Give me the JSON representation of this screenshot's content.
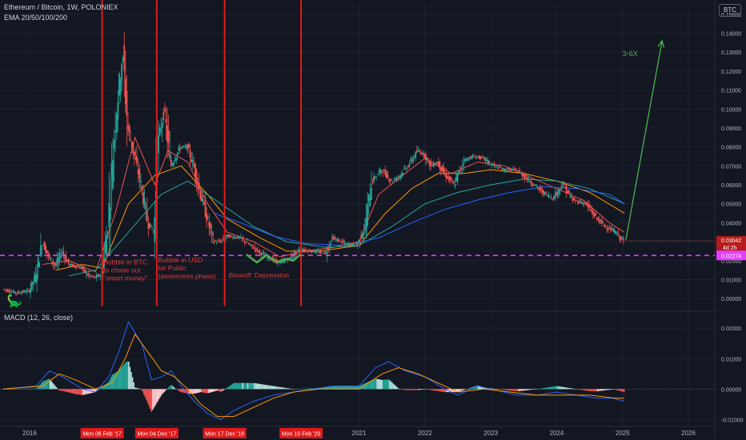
{
  "header": {
    "title": "Ethereum / Bitcoin, 1W, POLONIEX",
    "indicator": "EMA 20/50/100/200",
    "macd_label": "MACD (12, 26, close)",
    "currency_button": "BTC"
  },
  "colors": {
    "background": "#131722",
    "grid": "#1f2330",
    "up_candle": "#26a69a",
    "down_candle": "#ef5350",
    "vertical_lines": "#e0191b",
    "support_line": "#e040fb",
    "arrow": "#4caf50",
    "ema20": "#ef5350",
    "ema50": "#ff9800",
    "ema100": "#26a69a",
    "ema200": "#2962ff",
    "macd_line": "#2962ff",
    "signal_line": "#ff9800"
  },
  "chart_data": {
    "type": "candlestick",
    "price_axis": {
      "range": [
        -0.005,
        0.155
      ],
      "ticks": [
        0,
        0.01,
        0.02,
        0.03,
        0.04,
        0.05,
        0.06,
        0.07,
        0.08,
        0.09,
        0.1,
        0.11,
        0.12,
        0.13,
        0.14,
        0.15
      ],
      "tick_labels": [
        "0.00000",
        "0.01000",
        "0.02000",
        "0.03000",
        "0.04000",
        "0.05000",
        "0.06000",
        "0.07000",
        "0.08000",
        "0.09000",
        "0.10000",
        "0.11000",
        "0.12000",
        "0.13000",
        "0.14000",
        "0.15000"
      ]
    },
    "macd_axis": {
      "range": [
        -0.012,
        0.024
      ],
      "ticks": [
        -0.01,
        0,
        0.01,
        0.02
      ],
      "tick_labels": [
        "-0.01000",
        "0.00000",
        "0.01000",
        "0.02000"
      ]
    },
    "time_axis": {
      "range": [
        2015.55,
        2026.4
      ],
      "ticks": [
        2016,
        2021,
        2022,
        2023,
        2024,
        2025,
        2026
      ],
      "tick_labels": [
        "2016",
        "2021",
        "2022",
        "2023",
        "2024",
        "2025",
        "2026"
      ],
      "highlighted_dates": [
        {
          "x": 2017.1,
          "label": "Mon 06 Feb '17"
        },
        {
          "x": 2017.93,
          "label": "Mon 04 Dec '17"
        },
        {
          "x": 2018.96,
          "label": "Mon 17 Dec '18"
        },
        {
          "x": 2020.12,
          "label": "Mon 10 Feb '20"
        }
      ]
    },
    "price_path": [
      [
        2015.6,
        0.005
      ],
      [
        2015.8,
        0.003
      ],
      [
        2016.0,
        0.004
      ],
      [
        2016.1,
        0.012
      ],
      [
        2016.2,
        0.03
      ],
      [
        2016.3,
        0.022
      ],
      [
        2016.4,
        0.017
      ],
      [
        2016.5,
        0.025
      ],
      [
        2016.6,
        0.018
      ],
      [
        2016.8,
        0.016
      ],
      [
        2016.9,
        0.012
      ],
      [
        2017.0,
        0.011
      ],
      [
        2017.1,
        0.013
      ],
      [
        2017.2,
        0.04
      ],
      [
        2017.3,
        0.09
      ],
      [
        2017.42,
        0.13
      ],
      [
        2017.5,
        0.09
      ],
      [
        2017.6,
        0.075
      ],
      [
        2017.7,
        0.06
      ],
      [
        2017.8,
        0.04
      ],
      [
        2017.9,
        0.035
      ],
      [
        2017.95,
        0.08
      ],
      [
        2018.05,
        0.1
      ],
      [
        2018.15,
        0.07
      ],
      [
        2018.3,
        0.08
      ],
      [
        2018.4,
        0.08
      ],
      [
        2018.5,
        0.07
      ],
      [
        2018.6,
        0.055
      ],
      [
        2018.8,
        0.03
      ],
      [
        2018.9,
        0.03
      ],
      [
        2019.0,
        0.033
      ],
      [
        2019.2,
        0.032
      ],
      [
        2019.4,
        0.027
      ],
      [
        2019.6,
        0.022
      ],
      [
        2019.8,
        0.019
      ],
      [
        2019.95,
        0.021
      ],
      [
        2020.1,
        0.026
      ],
      [
        2020.3,
        0.025
      ],
      [
        2020.5,
        0.024
      ],
      [
        2020.6,
        0.032
      ],
      [
        2020.8,
        0.029
      ],
      [
        2020.95,
        0.028
      ],
      [
        2021.0,
        0.03
      ],
      [
        2021.1,
        0.038
      ],
      [
        2021.2,
        0.062
      ],
      [
        2021.35,
        0.068
      ],
      [
        2021.5,
        0.062
      ],
      [
        2021.6,
        0.064
      ],
      [
        2021.75,
        0.07
      ],
      [
        2021.9,
        0.078
      ],
      [
        2022.0,
        0.076
      ],
      [
        2022.1,
        0.07
      ],
      [
        2022.2,
        0.072
      ],
      [
        2022.3,
        0.066
      ],
      [
        2022.45,
        0.06
      ],
      [
        2022.6,
        0.073
      ],
      [
        2022.75,
        0.075
      ],
      [
        2022.9,
        0.074
      ],
      [
        2023.0,
        0.071
      ],
      [
        2023.2,
        0.068
      ],
      [
        2023.4,
        0.068
      ],
      [
        2023.6,
        0.062
      ],
      [
        2023.8,
        0.056
      ],
      [
        2023.95,
        0.053
      ],
      [
        2024.1,
        0.06
      ],
      [
        2024.25,
        0.052
      ],
      [
        2024.45,
        0.05
      ],
      [
        2024.6,
        0.043
      ],
      [
        2024.75,
        0.038
      ],
      [
        2024.9,
        0.035
      ],
      [
        2025.03,
        0.03
      ]
    ],
    "ema_series": [
      {
        "key": "ema20",
        "values": [
          [
            2016.2,
            0.018
          ],
          [
            2016.6,
            0.02
          ],
          [
            2017.0,
            0.014
          ],
          [
            2017.3,
            0.045
          ],
          [
            2017.6,
            0.085
          ],
          [
            2017.9,
            0.06
          ],
          [
            2018.1,
            0.078
          ],
          [
            2018.4,
            0.072
          ],
          [
            2018.7,
            0.05
          ],
          [
            2019.0,
            0.035
          ],
          [
            2019.4,
            0.03
          ],
          [
            2019.8,
            0.022
          ],
          [
            2020.2,
            0.025
          ],
          [
            2020.6,
            0.027
          ],
          [
            2021.0,
            0.03
          ],
          [
            2021.3,
            0.055
          ],
          [
            2021.7,
            0.066
          ],
          [
            2022.0,
            0.074
          ],
          [
            2022.4,
            0.066
          ],
          [
            2022.8,
            0.072
          ],
          [
            2023.2,
            0.07
          ],
          [
            2023.6,
            0.064
          ],
          [
            2024.0,
            0.058
          ],
          [
            2024.4,
            0.052
          ],
          [
            2024.8,
            0.04
          ],
          [
            2025.03,
            0.035
          ]
        ]
      },
      {
        "key": "ema50",
        "values": [
          [
            2016.4,
            0.015
          ],
          [
            2016.8,
            0.018
          ],
          [
            2017.1,
            0.016
          ],
          [
            2017.5,
            0.05
          ],
          [
            2017.9,
            0.065
          ],
          [
            2018.3,
            0.07
          ],
          [
            2018.7,
            0.055
          ],
          [
            2019.0,
            0.042
          ],
          [
            2019.5,
            0.032
          ],
          [
            2019.9,
            0.025
          ],
          [
            2020.4,
            0.025
          ],
          [
            2021.0,
            0.028
          ],
          [
            2021.4,
            0.045
          ],
          [
            2021.8,
            0.058
          ],
          [
            2022.2,
            0.066
          ],
          [
            2022.6,
            0.066
          ],
          [
            2023.0,
            0.068
          ],
          [
            2023.5,
            0.066
          ],
          [
            2024.0,
            0.062
          ],
          [
            2024.5,
            0.056
          ],
          [
            2025.03,
            0.045
          ]
        ]
      },
      {
        "key": "ema100",
        "values": [
          [
            2016.6,
            0.012
          ],
          [
            2017.0,
            0.015
          ],
          [
            2017.5,
            0.035
          ],
          [
            2018.0,
            0.055
          ],
          [
            2018.4,
            0.062
          ],
          [
            2018.9,
            0.05
          ],
          [
            2019.4,
            0.038
          ],
          [
            2019.9,
            0.03
          ],
          [
            2020.5,
            0.027
          ],
          [
            2021.0,
            0.028
          ],
          [
            2021.5,
            0.038
          ],
          [
            2022.0,
            0.05
          ],
          [
            2022.5,
            0.056
          ],
          [
            2023.0,
            0.06
          ],
          [
            2023.5,
            0.063
          ],
          [
            2024.0,
            0.062
          ],
          [
            2024.5,
            0.058
          ],
          [
            2025.03,
            0.05
          ]
        ]
      },
      {
        "key": "ema200",
        "values": [
          [
            2018.8,
            0.045
          ],
          [
            2019.2,
            0.04
          ],
          [
            2019.7,
            0.033
          ],
          [
            2020.2,
            0.029
          ],
          [
            2020.8,
            0.028
          ],
          [
            2021.3,
            0.032
          ],
          [
            2021.8,
            0.04
          ],
          [
            2022.3,
            0.047
          ],
          [
            2022.8,
            0.052
          ],
          [
            2023.3,
            0.056
          ],
          [
            2023.8,
            0.059
          ],
          [
            2024.3,
            0.058
          ],
          [
            2024.8,
            0.055
          ],
          [
            2025.03,
            0.05
          ]
        ]
      }
    ],
    "green_curve": [
      [
        2019.3,
        0.023
      ],
      [
        2019.45,
        0.019
      ],
      [
        2019.6,
        0.023
      ],
      [
        2019.75,
        0.019
      ],
      [
        2019.9,
        0.021
      ],
      [
        2020.0,
        0.02
      ],
      [
        2020.1,
        0.023
      ]
    ],
    "macd_path": [
      [
        2015.6,
        0.0
      ],
      [
        2016.1,
        0.001
      ],
      [
        2016.3,
        0.006
      ],
      [
        2016.5,
        0.004
      ],
      [
        2016.8,
        0.0
      ],
      [
        2017.0,
        -0.001
      ],
      [
        2017.2,
        0.004
      ],
      [
        2017.35,
        0.012
      ],
      [
        2017.5,
        0.022
      ],
      [
        2017.7,
        0.015
      ],
      [
        2017.85,
        0.003
      ],
      [
        2018.0,
        0.004
      ],
      [
        2018.15,
        0.006
      ],
      [
        2018.3,
        0.001
      ],
      [
        2018.5,
        -0.004
      ],
      [
        2018.7,
        -0.008
      ],
      [
        2018.9,
        -0.01
      ],
      [
        2019.1,
        -0.007
      ],
      [
        2019.4,
        -0.004
      ],
      [
        2019.7,
        -0.002
      ],
      [
        2020.0,
        -0.001
      ],
      [
        2020.3,
        0.0
      ],
      [
        2020.6,
        0.001
      ],
      [
        2021.0,
        0.001
      ],
      [
        2021.25,
        0.007
      ],
      [
        2021.45,
        0.009
      ],
      [
        2021.7,
        0.006
      ],
      [
        2022.0,
        0.004
      ],
      [
        2022.3,
        0.0
      ],
      [
        2022.5,
        -0.002
      ],
      [
        2022.8,
        0.001
      ],
      [
        2023.0,
        0.0
      ],
      [
        2023.4,
        -0.002
      ],
      [
        2023.7,
        -0.002
      ],
      [
        2024.0,
        -0.001
      ],
      [
        2024.3,
        -0.002
      ],
      [
        2024.6,
        -0.003
      ],
      [
        2024.85,
        -0.003
      ],
      [
        2025.03,
        -0.004
      ]
    ],
    "signal_path": [
      [
        2015.6,
        0.0
      ],
      [
        2016.2,
        0.001
      ],
      [
        2016.45,
        0.005
      ],
      [
        2016.7,
        0.003
      ],
      [
        2017.0,
        0.0
      ],
      [
        2017.25,
        0.002
      ],
      [
        2017.45,
        0.01
      ],
      [
        2017.6,
        0.018
      ],
      [
        2017.8,
        0.012
      ],
      [
        2018.0,
        0.006
      ],
      [
        2018.2,
        0.004
      ],
      [
        2018.4,
        0.0
      ],
      [
        2018.6,
        -0.005
      ],
      [
        2018.85,
        -0.009
      ],
      [
        2019.1,
        -0.009
      ],
      [
        2019.4,
        -0.006
      ],
      [
        2019.7,
        -0.003
      ],
      [
        2020.0,
        -0.001
      ],
      [
        2020.4,
        0.0
      ],
      [
        2021.0,
        0.0
      ],
      [
        2021.35,
        0.005
      ],
      [
        2021.6,
        0.007
      ],
      [
        2021.9,
        0.005
      ],
      [
        2022.2,
        0.002
      ],
      [
        2022.5,
        -0.001
      ],
      [
        2022.9,
        0.0
      ],
      [
        2023.3,
        -0.001
      ],
      [
        2023.7,
        -0.002
      ],
      [
        2024.1,
        -0.002
      ],
      [
        2024.5,
        -0.002
      ],
      [
        2024.9,
        -0.003
      ],
      [
        2025.03,
        -0.003
      ]
    ],
    "last_price": {
      "value": 0.03042,
      "label": "0.03042",
      "countdown": "4d 2h"
    },
    "support_level": {
      "value": 0.02274,
      "label": "0.02274"
    },
    "annotations": [
      {
        "id": "bubble-btc",
        "lines": [
          "Bubble in BTC",
          "to chase out",
          "\"smart money\""
        ],
        "x": 2017.12,
        "y": 0.018
      },
      {
        "id": "bubble-usd",
        "lines": [
          "Bubble in USD",
          "for Public",
          "(awareness phase)"
        ],
        "x": 2017.95,
        "y": 0.019
      },
      {
        "id": "blowoff",
        "lines": [
          "Blowoff: Depression"
        ],
        "x": 2019.02,
        "y": 0.011
      }
    ],
    "projection": {
      "from": [
        2025.05,
        0.031
      ],
      "to": [
        2025.6,
        0.136
      ],
      "label": "3-6X",
      "label_x": 2025.0,
      "label_y": 0.128
    }
  }
}
